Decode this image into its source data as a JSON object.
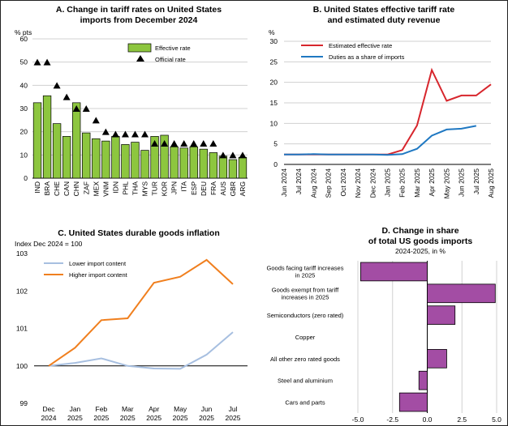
{
  "chart_data": [
    {
      "type": "bar",
      "title": "A. Change in tariff rates on United States imports from December 2024",
      "title_lines": [
        "A. Change in tariff rates on United States",
        "imports from December 2024"
      ],
      "ylabel": "% pts",
      "ylim": [
        0,
        60
      ],
      "yticks": [
        "0",
        "10",
        "20",
        "30",
        "40",
        "50",
        "60"
      ],
      "categories": [
        "IND",
        "BRA",
        "CHE",
        "CAN",
        "CHN",
        "ZAF",
        "MEX",
        "VNM",
        "IDN",
        "PHL",
        "THA",
        "MYS",
        "TUR",
        "KOR",
        "JPN",
        "ITA",
        "ESP",
        "DEU",
        "FRA",
        "AUS",
        "GBR",
        "ARG"
      ],
      "series": [
        {
          "name": "Effective rate",
          "kind": "bar",
          "color": "#8dc63f",
          "values": [
            32.5,
            35.5,
            23.5,
            18,
            32.5,
            19.5,
            17,
            16,
            18,
            14.5,
            15.5,
            12,
            18,
            18.5,
            13.5,
            13,
            13.5,
            12.5,
            11,
            9.5,
            8,
            9
          ]
        },
        {
          "name": "Official rate",
          "kind": "marker",
          "values": [
            50,
            50,
            40,
            35,
            30,
            30,
            25,
            20,
            19,
            19,
            19,
            19,
            15,
            15,
            15,
            15,
            15,
            15,
            15,
            10,
            10,
            10
          ]
        }
      ]
    },
    {
      "type": "line",
      "title": "B. United States effective tariff rate and estimated duty revenue",
      "title_lines": [
        "B. United States effective tariff rate",
        "and estimated duty revenue"
      ],
      "ylabel": "%",
      "ylim": [
        0,
        30
      ],
      "yticks": [
        "0",
        "5",
        "10",
        "15",
        "20",
        "25",
        "30"
      ],
      "x": [
        "Jun 2024",
        "Jul 2024",
        "Aug 2024",
        "Sep 2024",
        "Oct 2024",
        "Nov 2024",
        "Dec 2024",
        "Jan 2025",
        "Feb 2025",
        "Mar 2025",
        "Apr 2025",
        "May 2025",
        "Jun 2025",
        "Jul 2025",
        "Aug 2025"
      ],
      "series": [
        {
          "name": "Estimated effective rate",
          "color": "#d7262d",
          "values": [
            2.4,
            2.4,
            2.4,
            2.4,
            2.4,
            2.4,
            2.4,
            2.4,
            3.5,
            9.5,
            23,
            15.5,
            16.8,
            16.8,
            19.5
          ]
        },
        {
          "name": "Duties as a share of imports",
          "color": "#1f78c2",
          "values": [
            2.4,
            2.4,
            2.5,
            2.4,
            2.4,
            2.4,
            2.4,
            2.3,
            2.5,
            3.8,
            7,
            8.5,
            8.7,
            9.4,
            null
          ]
        }
      ],
      "legend_position": "top-left"
    },
    {
      "type": "line",
      "title": "C. United States durable goods inflation",
      "ylabel": "Index Dec 2024 = 100",
      "ylim": [
        99,
        103
      ],
      "yticks": [
        "99",
        "100",
        "101",
        "102",
        "103"
      ],
      "x": [
        "Dec 2024",
        "Jan 2025",
        "Feb 2025",
        "Mar 2025",
        "Apr 2025",
        "May 2025",
        "Jun 2025",
        "Jul 2025"
      ],
      "series": [
        {
          "name": "Lower import content",
          "color": "#a7bfe0",
          "values": [
            100,
            100.08,
            100.2,
            100.0,
            99.93,
            99.92,
            100.3,
            100.9
          ]
        },
        {
          "name": "Higher import content",
          "color": "#f07f1e",
          "values": [
            100,
            100.48,
            101.22,
            101.27,
            102.22,
            102.38,
            102.83,
            102.18
          ]
        }
      ],
      "legend_position": "top-left"
    },
    {
      "type": "bar",
      "orientation": "horizontal",
      "title": "D. Change in share of total US goods imports",
      "title_lines": [
        "D. Change in share",
        "of total US goods imports"
      ],
      "subtitle": "2024-2025, in %",
      "xlim": [
        -5,
        5
      ],
      "xticks": [
        "-5.0",
        "-2.5",
        "0.0",
        "2.5",
        "5.0"
      ],
      "categories": [
        "Goods facing tariff increases in 2025",
        "Goods exempt from tariff increases in 2025",
        "Semiconductors (zero rated)",
        "Copper",
        "All other zero rated goods",
        "Steel and aluminium",
        "Cars and parts"
      ],
      "category_lines": [
        [
          "Goods facing tariff increases",
          "in 2025"
        ],
        [
          "Goods exempt from tariff",
          "increases in 2025"
        ],
        [
          "Semiconductors (zero rated)"
        ],
        [
          "Copper"
        ],
        [
          "All other zero rated goods"
        ],
        [
          "Steel and aluminium"
        ],
        [
          "Cars and parts"
        ]
      ],
      "values": [
        -4.8,
        4.9,
        2.0,
        0.0,
        1.4,
        -0.6,
        -2.0
      ],
      "color": "#a34da4"
    }
  ]
}
